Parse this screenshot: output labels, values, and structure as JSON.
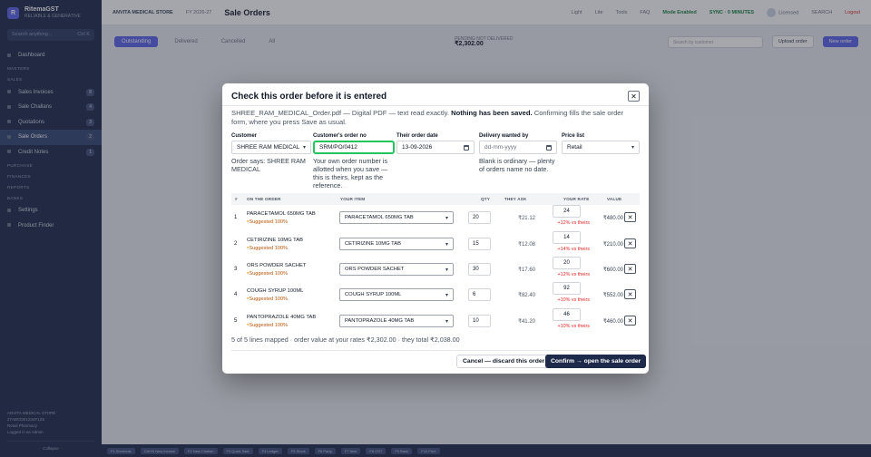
{
  "app": {
    "brand_name": "RitemaGST",
    "brand_sub": "RELIABLE & GENERATIVE",
    "search_placeholder": "Search anything...",
    "search_shortcut": "Ctrl K"
  },
  "sidebar": {
    "items": [
      {
        "label": "Dashboard",
        "type": "main"
      },
      {
        "label": "MASTERS",
        "type": "sub"
      },
      {
        "label": "SALES",
        "type": "sub"
      },
      {
        "label": "Sales Invoices",
        "type": "main",
        "badge": "8"
      },
      {
        "label": "Sale Challans",
        "type": "main",
        "badge": "4"
      },
      {
        "label": "Quotations",
        "type": "main",
        "badge": "3"
      },
      {
        "label": "Sale Orders",
        "type": "main",
        "badge": "2",
        "active": true
      },
      {
        "label": "Credit Notes",
        "type": "main",
        "badge": "1"
      },
      {
        "label": "PURCHASE",
        "type": "sub"
      },
      {
        "label": "FINANCES",
        "type": "sub"
      },
      {
        "label": "REPORTS",
        "type": "sub"
      },
      {
        "label": "BANKS",
        "type": "sub"
      },
      {
        "label": "Settings",
        "type": "main"
      },
      {
        "label": "Product Finder",
        "type": "main"
      }
    ],
    "footer_store": "ANVITA MEDICAL STORE",
    "footer_gst": "27ABCDE1234F1Z5",
    "footer_status": "Retail Pharmacy",
    "footer_user": "Logged in as Admin",
    "collapse_label": "Collapse"
  },
  "topbar": {
    "store": "ANVITA MEDICAL STORE",
    "fy": "FY 2026-27",
    "page_title": "Sale Orders",
    "links": [
      "Light",
      "Lite",
      "Tools",
      "FAQ"
    ],
    "status": "Mode Enabled",
    "sync": "SYNC · 0 MINUTES",
    "user": "Licensed",
    "search": "SEARCH",
    "logout": "Logout"
  },
  "subbar": {
    "tabs": [
      "Outstanding",
      "Delivered",
      "Cancelled",
      "All"
    ],
    "mid_label": "PENDING NOT DELIVERED",
    "mid_value": "₹2,302.00",
    "search_placeholder": "Search by customer",
    "upload_label": "Upload order",
    "new_label": "New order"
  },
  "bottombar": [
    "F1 Shortcuts",
    "Ctrl+N New Invoice",
    "F2 New Challan",
    "F3 Quick Sale",
    "F4 Ledger",
    "F5 Stock",
    "F6 Party",
    "F7 Item",
    "F8 GST",
    "F9 Bank",
    "F10 Print"
  ],
  "modal": {
    "title": "Check this order before it is entered",
    "intro_plain": "SHREE_RAM_MEDICAL_Order.pdf — Digital PDF — text read exactly.",
    "intro_bold": "Nothing has been saved.",
    "intro_rest": "Confirming fills the sale order form, where you press Save as usual.",
    "customer_label": "Customer",
    "customer_value": "SHREE RAM MEDICAL",
    "customer_note": "Order says: SHREE RAM MEDICAL",
    "order_no_label": "Customer's order no",
    "order_no_value": "SRM/PO/0412",
    "order_no_note": "Your own order number is allotted when you save — this is theirs, kept as the reference.",
    "order_date_label": "Their order date",
    "order_date_value": "13-09-2026",
    "delivery_label": "Delivery wanted by",
    "delivery_placeholder": "dd-mm-yyyy",
    "delivery_note": "Blank is ordinary — plenty of orders name no date.",
    "price_list_label": "Price list",
    "price_list_value": "Retail",
    "columns": {
      "num": "#",
      "on_order": "ON THE ORDER",
      "your_item": "YOUR ITEM",
      "qty": "QTY",
      "they_ask": "THEY ASK",
      "your_rate": "YOUR RATE",
      "value": "VALUE"
    },
    "rows": [
      {
        "num": "1",
        "name": "PARACETAMOL 650MG TAB",
        "suggest": "Suggested 100%",
        "item": "PARACETAMOL 650MG TAB",
        "qty": "20",
        "ask": "₹21.12",
        "rate": "24",
        "vs": "+12% vs theirs",
        "value": "₹480.00"
      },
      {
        "num": "2",
        "name": "CETIRIZINE 10MG TAB",
        "suggest": "Suggested 100%",
        "item": "CETIRIZINE 10MG TAB",
        "qty": "15",
        "ask": "₹12.08",
        "rate": "14",
        "vs": "+14% vs theirs",
        "value": "₹210.00"
      },
      {
        "num": "3",
        "name": "ORS POWDER SACHET",
        "suggest": "Suggested 100%",
        "item": "ORS POWDER SACHET",
        "qty": "30",
        "ask": "₹17.60",
        "rate": "20",
        "vs": "+12% vs theirs",
        "value": "₹600.00"
      },
      {
        "num": "4",
        "name": "COUGH SYRUP 100ML",
        "suggest": "Suggested 100%",
        "item": "COUGH SYRUP 100ML",
        "qty": "6",
        "ask": "₹82.40",
        "rate": "92",
        "vs": "+10% vs theirs",
        "value": "₹552.00"
      },
      {
        "num": "5",
        "name": "PANTOPRAZOLE 40MG TAB",
        "suggest": "Suggested 100%",
        "item": "PANTOPRAZOLE 40MG TAB",
        "qty": "10",
        "ask": "₹41.20",
        "rate": "46",
        "vs": "+10% vs theirs",
        "value": "₹460.00"
      }
    ],
    "summary": "5 of 5 lines mapped · order value at your rates ₹2,302.00 · they total ₹2,038.00",
    "cancel_label": "Cancel — discard this order",
    "confirm_label": "Confirm → open the sale order",
    "close_glyph": "✕",
    "remove_glyph": "✕"
  }
}
